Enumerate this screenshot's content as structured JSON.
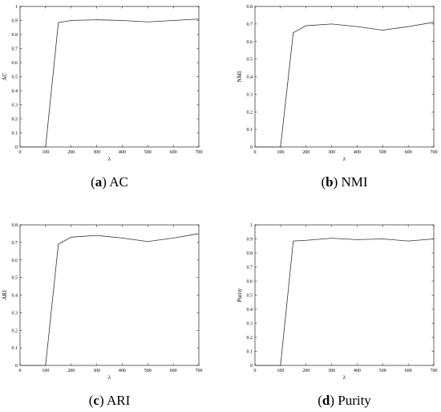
{
  "chart_data": [
    {
      "type": "line",
      "ylabel": "AC",
      "xlabel": "λ",
      "caption_letter": "a",
      "caption_text": "AC",
      "xlim": [
        0,
        700
      ],
      "ylim": [
        0,
        1
      ],
      "xticks": [
        0,
        100,
        200,
        300,
        400,
        500,
        600,
        700
      ],
      "yticks": [
        0,
        0.1,
        0.2,
        0.3,
        0.4,
        0.5,
        0.6,
        0.7,
        0.8,
        0.9,
        1
      ],
      "x": [
        0,
        100,
        150,
        200,
        300,
        400,
        500,
        600,
        700
      ],
      "y": [
        0,
        0,
        0.885,
        0.9,
        0.905,
        0.9,
        0.89,
        0.9,
        0.91
      ],
      "grid": false
    },
    {
      "type": "line",
      "ylabel": "NMI",
      "xlabel": "λ",
      "caption_letter": "b",
      "caption_text": "NMI",
      "xlim": [
        0,
        700
      ],
      "ylim": [
        0,
        0.8
      ],
      "xticks": [
        0,
        100,
        200,
        300,
        400,
        500,
        600,
        700
      ],
      "yticks": [
        0,
        0.1,
        0.2,
        0.3,
        0.4,
        0.5,
        0.6,
        0.7,
        0.8
      ],
      "x": [
        0,
        100,
        150,
        200,
        300,
        400,
        500,
        600,
        700
      ],
      "y": [
        0,
        0,
        0.65,
        0.69,
        0.7,
        0.685,
        0.665,
        0.685,
        0.71
      ],
      "grid": false
    },
    {
      "type": "line",
      "ylabel": "ARI",
      "xlabel": "λ",
      "caption_letter": "c",
      "caption_text": "ARI",
      "xlim": [
        0,
        700
      ],
      "ylim": [
        0,
        0.8
      ],
      "xticks": [
        0,
        100,
        200,
        300,
        400,
        500,
        600,
        700
      ],
      "yticks": [
        0,
        0.1,
        0.2,
        0.3,
        0.4,
        0.5,
        0.6,
        0.7,
        0.8
      ],
      "x": [
        0,
        100,
        150,
        200,
        300,
        400,
        500,
        600,
        700
      ],
      "y": [
        0,
        0,
        0.69,
        0.73,
        0.74,
        0.725,
        0.705,
        0.725,
        0.75
      ],
      "grid": false
    },
    {
      "type": "line",
      "ylabel": "Purity",
      "xlabel": "λ",
      "caption_letter": "d",
      "caption_text": "Purity",
      "xlim": [
        0,
        700
      ],
      "ylim": [
        0,
        1
      ],
      "xticks": [
        0,
        100,
        200,
        300,
        400,
        500,
        600,
        700
      ],
      "yticks": [
        0,
        0.1,
        0.2,
        0.3,
        0.4,
        0.5,
        0.6,
        0.7,
        0.8,
        0.9,
        1
      ],
      "x": [
        0,
        100,
        150,
        200,
        300,
        400,
        500,
        600,
        700
      ],
      "y": [
        0,
        0,
        0.885,
        0.89,
        0.905,
        0.895,
        0.9,
        0.885,
        0.9
      ],
      "grid": false
    }
  ],
  "colors": {
    "line": "#333333",
    "axis": "#000000"
  }
}
